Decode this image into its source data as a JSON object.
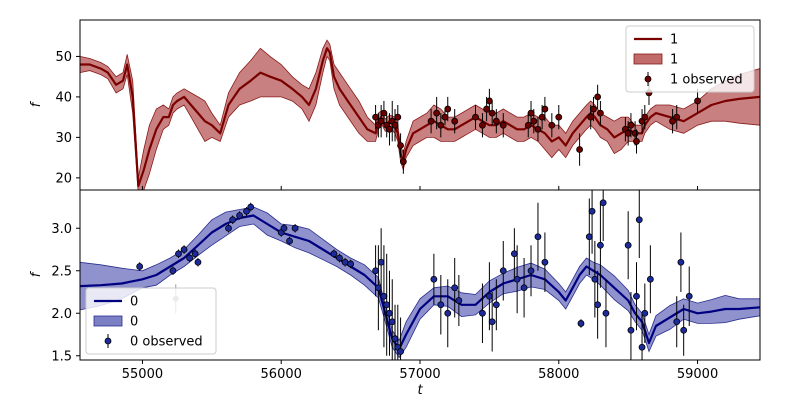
{
  "chart_data": {
    "type": "line",
    "xlabel": "t",
    "xlim": [
      54550,
      59450
    ],
    "x_ticks": [
      55000,
      56000,
      57000,
      58000,
      59000
    ],
    "grid": false,
    "panels": [
      {
        "id": "top",
        "ylabel": "f",
        "ylim": [
          17,
          59
        ],
        "y_ticks": [
          20,
          30,
          40,
          50
        ],
        "legend_position": "top-right",
        "legend": [
          {
            "label": "1",
            "kind": "line"
          },
          {
            "label": "1",
            "kind": "band"
          },
          {
            "label": "1 observed",
            "kind": "points"
          }
        ],
        "colors": {
          "line": "#7a0000",
          "band": "#c06a6a",
          "band_edge": "#8b1a1a",
          "points_face": "#6b0000"
        },
        "series": [
          {
            "name": "1",
            "x": [
              54550,
              54620,
              54700,
              54750,
              54810,
              54860,
              54890,
              54930,
              54970,
              55010,
              55050,
              55100,
              55150,
              55190,
              55220,
              55250,
              55300,
              55350,
              55400,
              55450,
              55500,
              55560,
              55620,
              55700,
              55780,
              55850,
              55920,
              56000,
              56080,
              56150,
              56200,
              56250,
              56300,
              56330,
              56350,
              56380,
              56420,
              56480,
              56560,
              56620,
              56680,
              56700,
              56720,
              56750,
              56780,
              56820,
              56840,
              56860,
              56880,
              56900,
              56950,
              57000,
              57050,
              57100,
              57150,
              57200,
              57250,
              57300,
              57350,
              57400,
              57450,
              57500,
              57550,
              57600,
              57650,
              57700,
              57750,
              57800,
              57850,
              57900,
              57950,
              58000,
              58050,
              58100,
              58150,
              58200,
              58230,
              58260,
              58300,
              58350,
              58400,
              58450,
              58500,
              58550,
              58600,
              58620,
              58660,
              58700,
              58800,
              58900,
              59000,
              59100,
              59200,
              59300,
              59450
            ],
            "y": [
              48,
              48,
              47,
              46,
              43,
              44,
              48,
              40,
              18,
              22,
              27,
              32,
              35,
              35,
              38,
              39,
              40,
              38,
              36,
              34,
              33,
              31,
              38,
              42,
              44,
              46,
              45,
              44,
              42,
              40,
              38,
              42,
              49,
              52,
              51,
              45,
              42,
              39,
              35,
              32,
              31,
              34,
              35,
              33,
              34,
              33,
              31,
              26,
              24,
              27,
              31,
              32,
              33,
              34,
              33,
              32,
              32,
              33,
              34,
              35,
              34,
              33,
              33,
              34,
              33,
              32,
              32,
              33,
              32,
              31,
              29,
              30,
              28,
              31,
              33,
              35,
              36,
              35,
              33,
              32,
              30,
              31,
              32,
              31,
              31,
              33,
              35,
              36,
              35,
              34,
              36,
              38,
              39,
              39.5,
              40
            ],
            "band_halfwidth": [
              2,
              1.5,
              1.5,
              1.5,
              2,
              2,
              2.5,
              4,
              2,
              5,
              6,
              5,
              3,
              2,
              2,
              2,
              2,
              3,
              4,
              5,
              3,
              2,
              3,
              4,
              5,
              6,
              5,
              4,
              3,
              3,
              4,
              4,
              3,
              2,
              2,
              3,
              4,
              4,
              4,
              3,
              2,
              2,
              1.5,
              1.5,
              1.5,
              2,
              2,
              2,
              2,
              2,
              3,
              3,
              3,
              4,
              4,
              3,
              3,
              3,
              3,
              3,
              3,
              3,
              3,
              3,
              3,
              3,
              3,
              3,
              3,
              4,
              4,
              3,
              3,
              3,
              3,
              3,
              3,
              3,
              3,
              3,
              4,
              4,
              3,
              2,
              2,
              2,
              2,
              2,
              3,
              3,
              3,
              4,
              5,
              6,
              7
            ]
          }
        ],
        "observed": {
          "name": "1 observed",
          "x": [
            56680,
            56700,
            56720,
            56740,
            56760,
            56780,
            56800,
            56820,
            56840,
            56860,
            56880,
            57080,
            57120,
            57150,
            57180,
            57200,
            57250,
            57400,
            57450,
            57480,
            57500,
            57520,
            57550,
            57600,
            57780,
            57800,
            57820,
            57850,
            57880,
            57900,
            57950,
            58000,
            58150,
            58230,
            58250,
            58280,
            58300,
            58480,
            58500,
            58520,
            58550,
            58560,
            58600,
            58620,
            58650,
            58820,
            58850,
            59000
          ],
          "y": [
            35,
            33,
            34,
            36,
            33,
            32,
            34,
            33,
            35,
            28,
            24,
            34,
            36,
            33,
            35,
            37,
            34,
            35,
            33,
            37,
            39,
            36,
            34,
            33,
            33,
            36,
            34,
            32,
            35,
            37,
            33,
            35,
            27,
            35,
            37,
            40,
            36,
            32,
            31,
            33,
            31,
            29,
            34,
            35,
            41,
            34,
            35,
            39
          ],
          "err": [
            3,
            3,
            4,
            3,
            3,
            4,
            5,
            4,
            3,
            3,
            3,
            3,
            4,
            3,
            2,
            3,
            3,
            3,
            3,
            3,
            3,
            3,
            3,
            3,
            3,
            3,
            3,
            3,
            3,
            3,
            3,
            3,
            4,
            3,
            3,
            3,
            3,
            3,
            3,
            3,
            3,
            3,
            3,
            3,
            3,
            3,
            3,
            3
          ]
        }
      },
      {
        "id": "bottom",
        "ylabel": "f",
        "ylim": [
          1.45,
          3.45
        ],
        "y_ticks": [
          1.5,
          2.0,
          2.5,
          3.0
        ],
        "legend_position": "bottom-left",
        "legend": [
          {
            "label": "0",
            "kind": "line"
          },
          {
            "label": "0",
            "kind": "band"
          },
          {
            "label": "0 observed",
            "kind": "points"
          }
        ],
        "colors": {
          "line": "#000080",
          "band": "#7b7fc4",
          "band_edge": "#2a2e8f",
          "points_face": "#1c2a9a"
        },
        "series": [
          {
            "name": "0",
            "x": [
              54550,
              54700,
              54850,
              55000,
              55100,
              55200,
              55300,
              55400,
              55500,
              55600,
              55700,
              55800,
              55900,
              56000,
              56100,
              56200,
              56300,
              56400,
              56500,
              56600,
              56700,
              56750,
              56800,
              56850,
              56900,
              57000,
              57100,
              57200,
              57300,
              57400,
              57500,
              57600,
              57700,
              57800,
              57900,
              58000,
              58050,
              58100,
              58150,
              58200,
              58250,
              58300,
              58400,
              58500,
              58550,
              58600,
              58650,
              58700,
              58800,
              58900,
              59000,
              59100,
              59200,
              59300,
              59450
            ],
            "y": [
              2.32,
              2.33,
              2.35,
              2.4,
              2.45,
              2.55,
              2.65,
              2.8,
              2.95,
              3.05,
              3.12,
              3.15,
              3.05,
              2.95,
              2.9,
              2.85,
              2.75,
              2.65,
              2.55,
              2.45,
              2.3,
              2.0,
              1.7,
              1.58,
              1.75,
              2.05,
              2.2,
              2.2,
              2.1,
              2.1,
              2.25,
              2.35,
              2.4,
              2.45,
              2.4,
              2.25,
              2.15,
              2.3,
              2.45,
              2.55,
              2.5,
              2.45,
              2.3,
              2.15,
              2.0,
              1.9,
              1.65,
              1.85,
              1.95,
              2.05,
              2.0,
              2.02,
              2.05,
              2.05,
              2.07
            ],
            "band_halfwidth": [
              0.28,
              0.24,
              0.18,
              0.1,
              0.12,
              0.1,
              0.1,
              0.12,
              0.15,
              0.14,
              0.1,
              0.1,
              0.13,
              0.1,
              0.13,
              0.14,
              0.12,
              0.1,
              0.1,
              0.12,
              0.12,
              0.1,
              0.1,
              0.1,
              0.15,
              0.12,
              0.1,
              0.12,
              0.14,
              0.12,
              0.13,
              0.12,
              0.14,
              0.14,
              0.12,
              0.1,
              0.1,
              0.1,
              0.1,
              0.1,
              0.1,
              0.12,
              0.14,
              0.12,
              0.1,
              0.1,
              0.1,
              0.12,
              0.14,
              0.12,
              0.12,
              0.14,
              0.16,
              0.12,
              0.1
            ]
          }
        ],
        "observed": {
          "name": "0 observed",
          "x": [
            54980,
            55220,
            55260,
            55300,
            55340,
            55380,
            55400,
            55620,
            55650,
            55700,
            55750,
            55780,
            56000,
            56020,
            56060,
            56100,
            56380,
            56420,
            56460,
            56500,
            56680,
            56700,
            56720,
            56740,
            56760,
            56780,
            56800,
            56820,
            56840,
            56860,
            57100,
            57150,
            57200,
            57250,
            57280,
            57450,
            57500,
            57520,
            57550,
            57600,
            57680,
            57700,
            57750,
            57800,
            57850,
            57900,
            58160,
            58220,
            58240,
            58260,
            58280,
            58300,
            58320,
            58340,
            58500,
            58520,
            58560,
            58580,
            58600,
            58620,
            58660,
            58850,
            58880,
            58900,
            58940
          ],
          "y": [
            2.55,
            2.5,
            2.7,
            2.75,
            2.65,
            2.7,
            2.6,
            3.0,
            3.1,
            3.15,
            3.2,
            3.25,
            2.95,
            3.0,
            2.85,
            3.0,
            2.7,
            2.65,
            2.6,
            2.58,
            2.5,
            2.3,
            2.6,
            2.2,
            2.1,
            2.0,
            1.9,
            1.7,
            1.6,
            1.55,
            2.4,
            2.1,
            2.0,
            2.3,
            2.15,
            2.0,
            2.2,
            1.9,
            2.1,
            2.5,
            2.7,
            2.4,
            2.3,
            2.5,
            2.9,
            2.6,
            1.88,
            2.9,
            3.2,
            2.4,
            2.1,
            2.8,
            3.3,
            2.0,
            2.8,
            1.8,
            2.2,
            3.1,
            1.6,
            2.0,
            2.4,
            1.9,
            2.6,
            1.8,
            2.2
          ],
          "err": [
            0.05,
            0.05,
            0.05,
            0.05,
            0.05,
            0.05,
            0.05,
            0.05,
            0.05,
            0.05,
            0.05,
            0.05,
            0.05,
            0.05,
            0.05,
            0.05,
            0.05,
            0.05,
            0.05,
            0.05,
            0.3,
            0.5,
            0.4,
            0.6,
            0.6,
            0.5,
            0.5,
            0.4,
            0.5,
            0.4,
            0.3,
            0.35,
            0.4,
            0.35,
            0.3,
            0.35,
            0.4,
            0.35,
            0.3,
            0.35,
            0.3,
            0.4,
            0.35,
            0.3,
            0.4,
            0.35,
            0.05,
            0.45,
            0.5,
            0.45,
            0.4,
            0.5,
            0.45,
            0.4,
            0.4,
            0.45,
            0.4,
            0.45,
            0.4,
            0.35,
            0.4,
            0.3,
            0.35,
            0.3,
            0.35
          ]
        },
        "outlier": {
          "x": 55240,
          "y": 2.17,
          "err": 0.17
        }
      }
    ]
  }
}
